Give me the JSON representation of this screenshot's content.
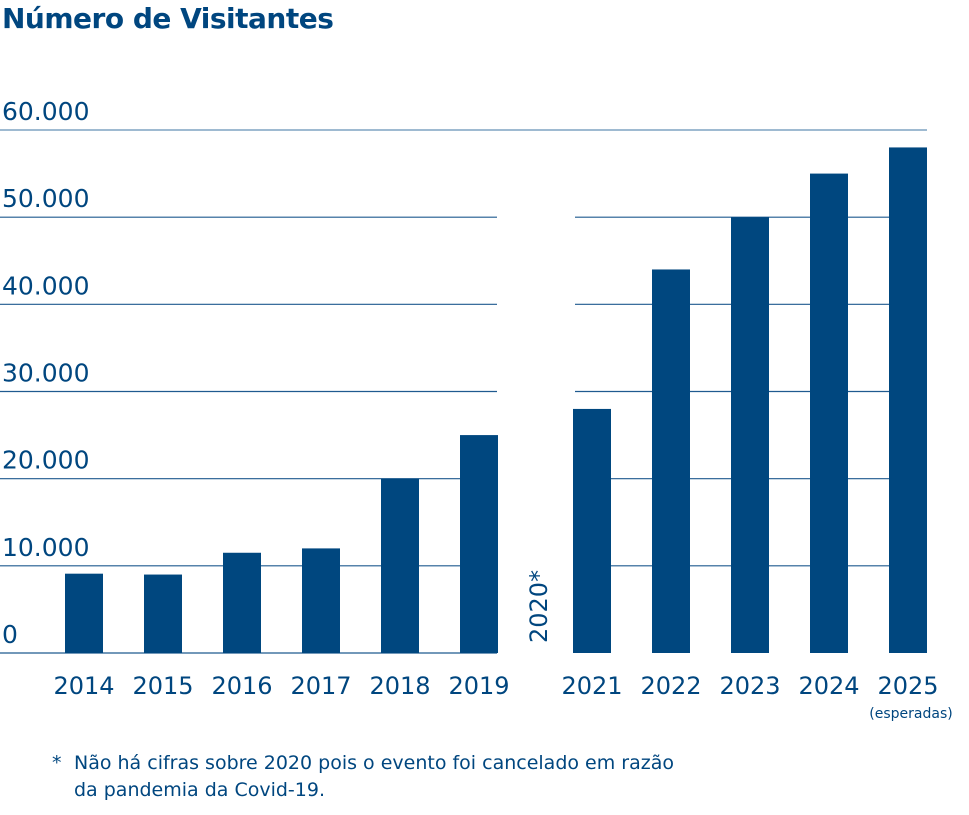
{
  "chart_data": {
    "type": "bar",
    "title": "Número de Visitantes",
    "categories": [
      "2014",
      "2015",
      "2016",
      "2017",
      "2018",
      "2019",
      "2020*",
      "2021",
      "2022",
      "2023",
      "2024",
      "2025"
    ],
    "values": [
      9100,
      9000,
      11500,
      12000,
      20000,
      25000,
      null,
      28000,
      44000,
      50000,
      55000,
      58000
    ],
    "ylim": [
      0,
      60000
    ],
    "yticks": [
      0,
      10000,
      20000,
      30000,
      40000,
      50000,
      60000
    ],
    "ytick_labels": [
      "0",
      "10.000",
      "20.000",
      "30.000",
      "40.000",
      "50.000",
      "60.000"
    ],
    "grid": true,
    "annotations": {
      "gap_label": "2020*",
      "last_bar_sublabel": "(esperadas)",
      "footnote_marker": "*",
      "footnote": "Não há cifras sobre 2020 pois o evento foi cancelado em razão da pandemia da Covid-19."
    },
    "colors": {
      "bar": "#00477f",
      "grid": "#1f5a8f",
      "text": "#00467f"
    }
  }
}
